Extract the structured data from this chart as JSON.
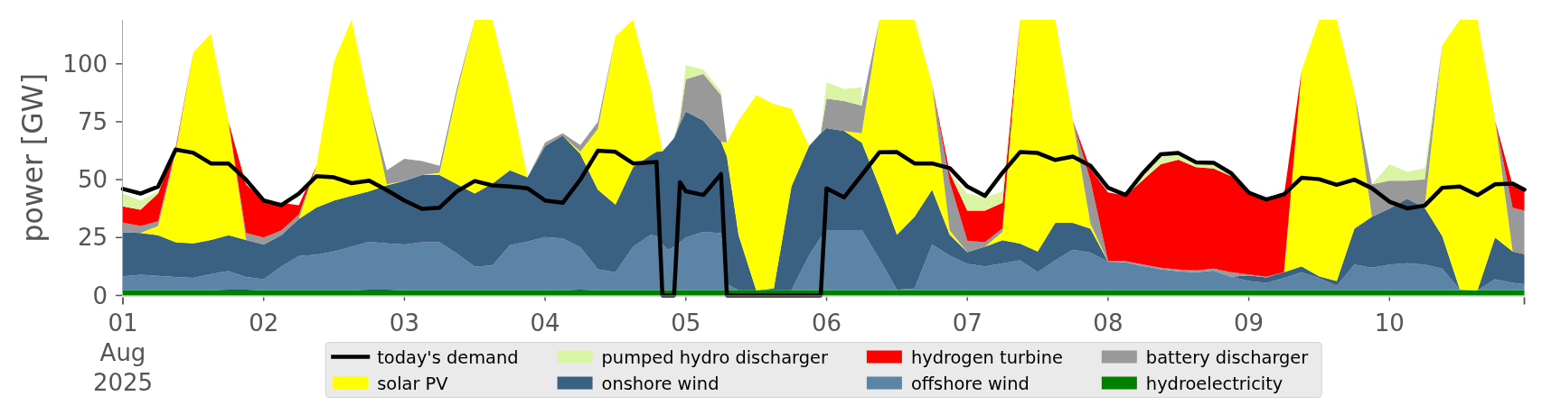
{
  "chart_data": {
    "type": "area",
    "stacked": true,
    "ylabel": "power [GW]",
    "legend": "bottom",
    "xlim": [
      "2025-08-01T00:00",
      "2025-08-10T23:00"
    ],
    "ylim": [
      0,
      119
    ],
    "yticks": [
      0,
      25,
      50,
      75,
      100
    ],
    "xticks": [
      {
        "value": "2025-08-01T00:00",
        "label": "01\nAug\n2025"
      },
      {
        "value": "2025-08-02T00:00",
        "label": "02"
      },
      {
        "value": "2025-08-03T00:00",
        "label": "03"
      },
      {
        "value": "2025-08-04T00:00",
        "label": "04"
      },
      {
        "value": "2025-08-05T00:00",
        "label": "05"
      },
      {
        "value": "2025-08-06T00:00",
        "label": "06"
      },
      {
        "value": "2025-08-07T00:00",
        "label": "07"
      },
      {
        "value": "2025-08-08T00:00",
        "label": "08"
      },
      {
        "value": "2025-08-09T00:00",
        "label": "09"
      },
      {
        "value": "2025-08-10T00:00",
        "label": "10"
      },
      {
        "value": "2025-08-10T23:00",
        "label": null
      }
    ],
    "x": [
      "2025-08-01T00:00",
      "2025-08-01T03:00",
      "2025-08-01T06:00",
      "2025-08-01T09:00",
      "2025-08-01T12:00",
      "2025-08-01T15:00",
      "2025-08-01T18:00",
      "2025-08-01T21:00",
      "2025-08-02T00:00",
      "2025-08-02T03:00",
      "2025-08-02T06:00",
      "2025-08-02T09:00",
      "2025-08-02T12:00",
      "2025-08-02T15:00",
      "2025-08-02T18:00",
      "2025-08-02T21:00",
      "2025-08-03T00:00",
      "2025-08-03T03:00",
      "2025-08-03T06:00",
      "2025-08-03T09:00",
      "2025-08-03T12:00",
      "2025-08-03T15:00",
      "2025-08-03T18:00",
      "2025-08-03T21:00",
      "2025-08-04T00:00",
      "2025-08-04T03:00",
      "2025-08-04T06:00",
      "2025-08-04T09:00",
      "2025-08-04T12:00",
      "2025-08-04T15:00",
      "2025-08-04T18:00",
      "2025-08-04T19:00",
      "2025-08-04T20:00",
      "2025-08-04T21:00",
      "2025-08-04T22:00",
      "2025-08-04T23:00",
      "2025-08-05T00:00",
      "2025-08-05T03:00",
      "2025-08-05T06:00",
      "2025-08-05T07:00",
      "2025-08-05T09:00",
      "2025-08-05T12:00",
      "2025-08-05T15:00",
      "2025-08-05T18:00",
      "2025-08-05T21:00",
      "2025-08-05T23:00",
      "2025-08-06T00:00",
      "2025-08-06T03:00",
      "2025-08-06T06:00",
      "2025-08-06T09:00",
      "2025-08-06T12:00",
      "2025-08-06T15:00",
      "2025-08-06T18:00",
      "2025-08-06T21:00",
      "2025-08-07T00:00",
      "2025-08-07T03:00",
      "2025-08-07T06:00",
      "2025-08-07T09:00",
      "2025-08-07T12:00",
      "2025-08-07T15:00",
      "2025-08-07T18:00",
      "2025-08-07T21:00",
      "2025-08-08T00:00",
      "2025-08-08T03:00",
      "2025-08-08T06:00",
      "2025-08-08T09:00",
      "2025-08-08T12:00",
      "2025-08-08T15:00",
      "2025-08-08T18:00",
      "2025-08-08T21:00",
      "2025-08-09T00:00",
      "2025-08-09T03:00",
      "2025-08-09T06:00",
      "2025-08-09T09:00",
      "2025-08-09T12:00",
      "2025-08-09T15:00",
      "2025-08-09T18:00",
      "2025-08-09T21:00",
      "2025-08-10T00:00",
      "2025-08-10T03:00",
      "2025-08-10T06:00",
      "2025-08-10T09:00",
      "2025-08-10T12:00",
      "2025-08-10T15:00",
      "2025-08-10T18:00",
      "2025-08-10T21:00",
      "2025-08-10T23:00"
    ],
    "series": [
      {
        "name": "hydroelectricity",
        "color": "#008000",
        "values": [
          2.2,
          2.2,
          2.2,
          2.2,
          2.2,
          2.2,
          2.5,
          2.5,
          2.2,
          2.2,
          2.2,
          2.2,
          2.2,
          2.2,
          2.5,
          2.5,
          2.2,
          2.2,
          2.2,
          2.2,
          2.2,
          2.2,
          2.2,
          2.2,
          2.2,
          2.2,
          2.5,
          2.2,
          2.2,
          2.2,
          2.2,
          2.2,
          2.2,
          2.2,
          2.2,
          2.2,
          2.2,
          2.2,
          2.2,
          2.2,
          2.2,
          2.2,
          2.2,
          2.2,
          2.2,
          2.2,
          2.2,
          2.2,
          2.2,
          2.2,
          2.2,
          2.2,
          2.2,
          2.2,
          2.2,
          2.2,
          2.2,
          2.2,
          2.2,
          2.2,
          2.2,
          2.2,
          2.2,
          2.2,
          2.2,
          2.2,
          2.2,
          2.2,
          2.2,
          2.2,
          2.2,
          2.2,
          2.2,
          2.2,
          2.2,
          2.2,
          2.2,
          2.2,
          2.2,
          2.2,
          2.2,
          2.2,
          2.2,
          2.2,
          2.2,
          2.2,
          2.2
        ]
      },
      {
        "name": "offshore wind",
        "color": "#5c84a6",
        "values": [
          6.1,
          6.8,
          6.3,
          5.8,
          5.4,
          7.1,
          8,
          5.5,
          4.8,
          10.3,
          14.8,
          15.4,
          16.8,
          18.8,
          20.7,
          20,
          19.8,
          20.8,
          20.8,
          15.8,
          10.3,
          10.8,
          19.5,
          21.1,
          23,
          22.4,
          18.3,
          9.1,
          7.8,
          18.8,
          24,
          23.4,
          19.8,
          17.6,
          18.8,
          20.8,
          22.8,
          25.3,
          24.7,
          2.8,
          0,
          null,
          null,
          0,
          15,
          22.8,
          26,
          26,
          26,
          13.6,
          0.2,
          0.8,
          19.8,
          15,
          11.4,
          10.4,
          11.6,
          13,
          7.8,
          13,
          17.6,
          16.3,
          12.4,
          12.1,
          10.5,
          9.1,
          8.2,
          7.8,
          8.5,
          5.9,
          4,
          3.3,
          5.3,
          7.8,
          5.3,
          2,
          11.1,
          9.8,
          11.1,
          11.7,
          11.1,
          9.4,
          0.3,
          0,
          4.8,
          3.3,
          2.7
        ]
      },
      {
        "name": "onshore wind",
        "color": "#3b6182",
        "values": [
          19,
          18,
          17.5,
          15,
          14.9,
          14.7,
          15.5,
          16,
          15,
          13.5,
          16,
          20.4,
          22,
          22,
          21.8,
          25,
          27.5,
          29,
          29,
          30,
          31.5,
          35.3,
          32.3,
          27.7,
          39.3,
          44.4,
          40.4,
          34.4,
          29.2,
          34.4,
          34.4,
          36.4,
          40.2,
          45.2,
          47,
          51,
          54.4,
          48,
          39.5,
          55,
          23.8,
          0,
          0.8,
          44.8,
          47.3,
          45,
          44.1,
          42.8,
          37.8,
          31.2,
          23.8,
          31,
          23.7,
          9,
          5.1,
          8.4,
          10.1,
          7.2,
          9,
          16.2,
          11.6,
          10.3,
          0,
          null,
          null,
          null,
          null,
          null,
          null,
          0,
          2.5,
          2.3,
          2.5,
          2.6,
          0.8,
          2,
          15.5,
          22,
          24.2,
          27.9,
          24.6,
          14,
          0,
          0,
          18,
          13.5,
          12.9
        ]
      },
      {
        "name": "solar PV",
        "color": "#ffff00",
        "values": [
          null,
          0,
          4,
          39,
          82.5,
          89,
          49,
          0,
          null,
          null,
          0,
          18,
          60,
          76,
          38,
          0.5,
          0,
          0,
          1,
          40,
          75,
          70.7,
          34,
          0,
          null,
          0,
          0.8,
          26.3,
          72.8,
          63.6,
          29.1,
          13,
          0.5,
          0,
          null,
          null,
          null,
          null,
          0,
          6,
          49.5,
          84.3,
          79.6,
          33.7,
          0,
          null,
          null,
          0,
          4,
          72,
          92.8,
          85,
          45.3,
          1.8,
          0,
          0,
          3.6,
          96.6,
          100,
          87.6,
          44.1,
          2.2,
          0,
          null,
          null,
          null,
          null,
          null,
          null,
          null,
          null,
          null,
          0,
          84.4,
          110.7,
          112.8,
          59.2,
          0,
          null,
          null,
          0,
          82.4,
          116.5,
          116.8,
          50.5,
          0,
          null
        ]
      },
      {
        "name": "battery discharger",
        "color": "#999999",
        "values": [
          4.2,
          3,
          2,
          1,
          0,
          null,
          0,
          3,
          3,
          2,
          2,
          0,
          null,
          null,
          0,
          6,
          9.5,
          6,
          3,
          2,
          0,
          null,
          null,
          0,
          1.5,
          1,
          3,
          3,
          0,
          null,
          null,
          null,
          null,
          null,
          0,
          2,
          14,
          20.1,
          20.1,
          0,
          null,
          null,
          null,
          null,
          null,
          0,
          12.7,
          12.9,
          12,
          0,
          null,
          null,
          0,
          21,
          5,
          2,
          1.5,
          0,
          null,
          null,
          0,
          18.6,
          0.4,
          0.5,
          0.6,
          0.7,
          0.8,
          0.8,
          0.9,
          1.9,
          0.4,
          0.3,
          0,
          null,
          null,
          null,
          0,
          14,
          12.1,
          7.8,
          12.3,
          0,
          null,
          null,
          0,
          18.9,
          18.8
        ]
      },
      {
        "name": "hydrogen turbine",
        "color": "#ff0000",
        "values": [
          7,
          7,
          12,
          1,
          0,
          null,
          0,
          21,
          16,
          12,
          4,
          0,
          null,
          null,
          null,
          null,
          null,
          null,
          null,
          null,
          null,
          null,
          null,
          null,
          null,
          null,
          null,
          null,
          null,
          null,
          null,
          null,
          null,
          null,
          null,
          null,
          null,
          null,
          null,
          null,
          null,
          null,
          null,
          null,
          null,
          null,
          null,
          null,
          null,
          null,
          null,
          null,
          0,
          4,
          12.9,
          13.6,
          11,
          0,
          null,
          null,
          0,
          4.9,
          29.5,
          28.3,
          36.7,
          44.7,
          47.4,
          44.6,
          43.2,
          41.5,
          35.9,
          33.3,
          33,
          0,
          null,
          null,
          null,
          null,
          null,
          null,
          null,
          null,
          null,
          null,
          0,
          9.7,
          9.1
        ]
      },
      {
        "name": "pumped hydro discharger",
        "color": "#d9f5a3",
        "values": [
          5.5,
          4,
          1,
          0,
          null,
          null,
          0,
          1,
          1,
          0,
          null,
          null,
          null,
          null,
          null,
          null,
          null,
          null,
          null,
          null,
          null,
          null,
          null,
          null,
          null,
          null,
          null,
          null,
          null,
          null,
          null,
          null,
          null,
          null,
          0,
          2,
          6.1,
          1.9,
          1.5,
          0,
          null,
          null,
          null,
          null,
          null,
          0,
          7,
          5.2,
          8,
          null,
          null,
          null,
          null,
          0,
          7.4,
          5.8,
          5,
          0,
          null,
          null,
          null,
          null,
          null,
          0,
          1.5,
          3.3,
          2.4,
          2,
          2.5,
          0.7,
          0,
          null,
          null,
          null,
          null,
          null,
          null,
          0,
          7.1,
          3.8,
          4.8,
          0,
          null,
          null,
          null,
          null,
          null
        ]
      },
      {
        "name": "today's demand",
        "type": "line",
        "color": "#000000",
        "values": [
          46,
          44,
          47,
          63,
          61.6,
          57,
          57,
          50,
          41,
          39,
          44,
          51.5,
          51,
          48.5,
          49.6,
          45.5,
          41,
          37.4,
          37.9,
          45,
          49.4,
          47.5,
          47,
          46.3,
          41,
          40,
          50,
          62.5,
          62,
          57,
          57.5,
          57.7,
          0,
          0,
          0,
          48.9,
          45,
          43.4,
          52.4,
          0,
          0,
          0,
          0,
          0,
          0,
          0,
          46.3,
          42.4,
          52,
          61.8,
          61.9,
          57,
          57,
          55,
          47,
          43,
          53,
          61.9,
          61.5,
          58.5,
          60,
          56,
          46.5,
          43.4,
          53,
          61,
          61.5,
          57.5,
          57.3,
          52.8,
          44.4,
          41.4,
          43.7,
          50.8,
          50.2,
          47.8,
          50,
          46.3,
          40.5,
          37.6,
          38.8,
          46.5,
          47,
          43.3,
          48,
          48.3,
          45.7
        ]
      }
    ]
  }
}
